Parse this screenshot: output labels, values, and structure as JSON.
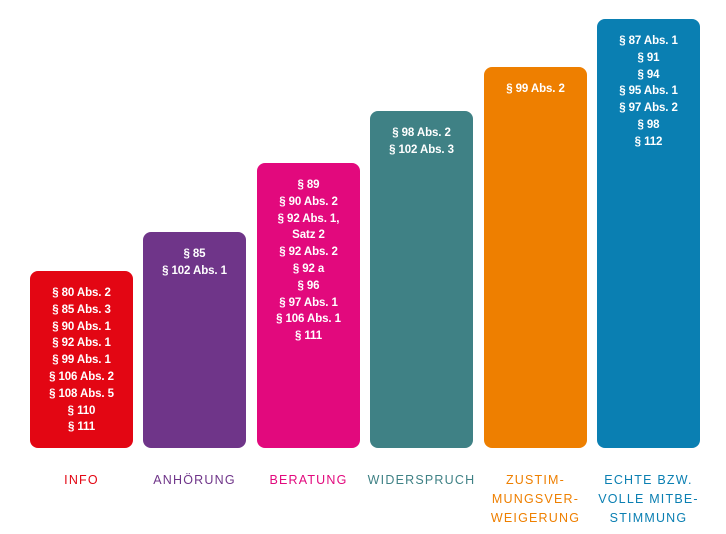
{
  "columns": [
    {
      "id": "info",
      "label_lines": [
        "INFO"
      ],
      "color": "#e30613",
      "label_color": "#e30613",
      "sections": [
        "§ 80 Abs. 2",
        "§ 85 Abs. 3",
        "§ 90 Abs. 1",
        "§ 92 Abs. 1",
        "§ 99 Abs. 1",
        "§ 106 Abs. 2",
        "§ 108 Abs. 5",
        "§ 110",
        "§ 111"
      ]
    },
    {
      "id": "anhoerung",
      "label_lines": [
        "ANHÖRUNG"
      ],
      "color": "#6f3589",
      "label_color": "#6f3589",
      "sections": [
        "§ 85",
        "§ 102 Abs. 1"
      ]
    },
    {
      "id": "beratung",
      "label_lines": [
        "BERATUNG"
      ],
      "color": "#e2097d",
      "label_color": "#e2097d",
      "sections": [
        "§ 89",
        "§ 90 Abs. 2",
        "§ 92 Abs. 1,",
        "Satz 2",
        "§ 92 Abs. 2",
        "§ 92 a",
        "§ 96",
        "§ 97 Abs. 1",
        "§ 106 Abs. 1",
        "§ 111"
      ]
    },
    {
      "id": "widerspruch",
      "label_lines": [
        "WIDERSPRUCH"
      ],
      "color": "#3f8185",
      "label_color": "#3f8185",
      "sections": [
        "§ 98 Abs. 2",
        "§ 102 Abs. 3"
      ]
    },
    {
      "id": "zustimmungsverweigerung",
      "label_lines": [
        "ZUSTIM-",
        "MUNGSVER-",
        "WEIGERUNG"
      ],
      "color": "#ee7f00",
      "label_color": "#ee7f00",
      "sections": [
        "§ 99 Abs. 2"
      ]
    },
    {
      "id": "mitbestimmung",
      "label_lines": [
        "ECHTE BZW.",
        "VOLLE MITBE-",
        "STIMMUNG"
      ],
      "color": "#0a7fb2",
      "label_color": "#0a7fb2",
      "sections": [
        "§ 87 Abs. 1",
        "§ 91",
        "§ 94",
        "§ 95 Abs. 1",
        "§ 97 Abs. 2",
        "§ 98",
        "§ 112"
      ]
    }
  ]
}
